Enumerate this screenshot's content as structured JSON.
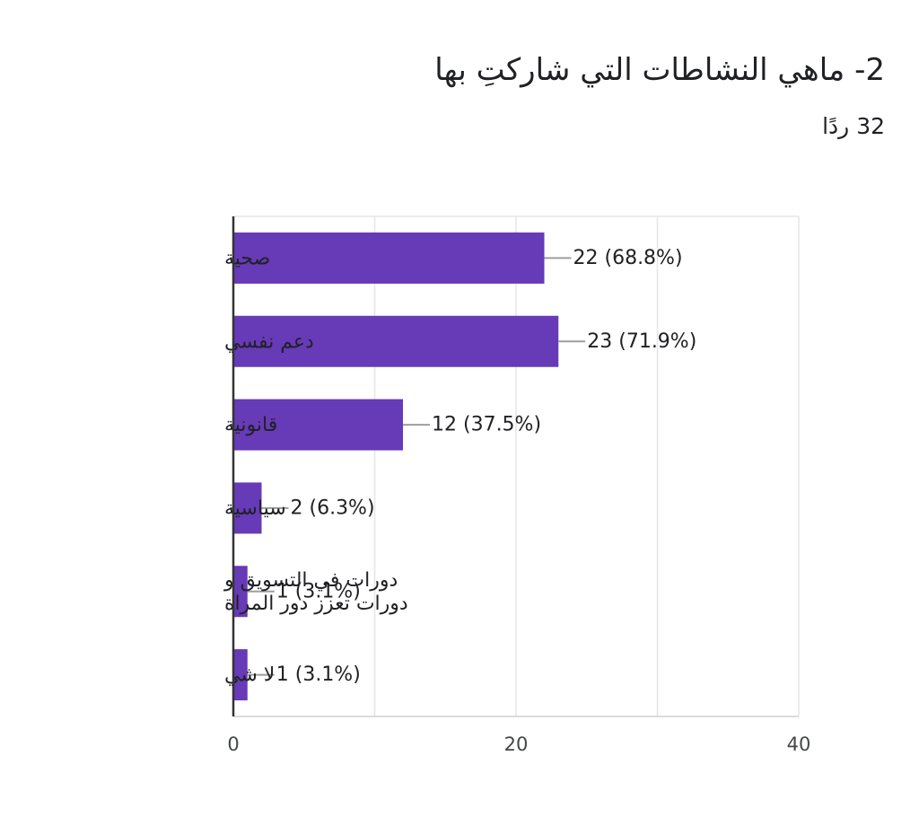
{
  "header": {
    "title": "2- ماهي النشاطات التي شاركتِ بها",
    "responses": "32 ردًا"
  },
  "chart_data": {
    "type": "bar",
    "orientation": "horizontal",
    "categories": [
      "صحية",
      "دعم نفسي",
      "قانونية",
      "سياسية",
      "دورات في التسويق و دورات تعزز دور المراة",
      "لا شي"
    ],
    "category_lines": [
      [
        "صحية"
      ],
      [
        "دعم نفسي"
      ],
      [
        "قانونية"
      ],
      [
        "سياسية"
      ],
      [
        "دورات في التسويق و",
        "دورات تعزز دور المراة"
      ],
      [
        "لا شي"
      ]
    ],
    "values": [
      22,
      23,
      12,
      2,
      1,
      1
    ],
    "value_labels": [
      "22 (68.8%)",
      "23 (71.9%)",
      "12 (37.5%)",
      "2 (6.3%)",
      "1 (3.1%)",
      "1 (3.1%)"
    ],
    "xlim": [
      0,
      40
    ],
    "xticks": [
      0,
      20,
      40
    ],
    "xtick_labels": [
      "0",
      "20",
      "40"
    ],
    "grid": true,
    "bar_color": "#673ab7",
    "title": "",
    "xlabel": "",
    "ylabel": ""
  }
}
